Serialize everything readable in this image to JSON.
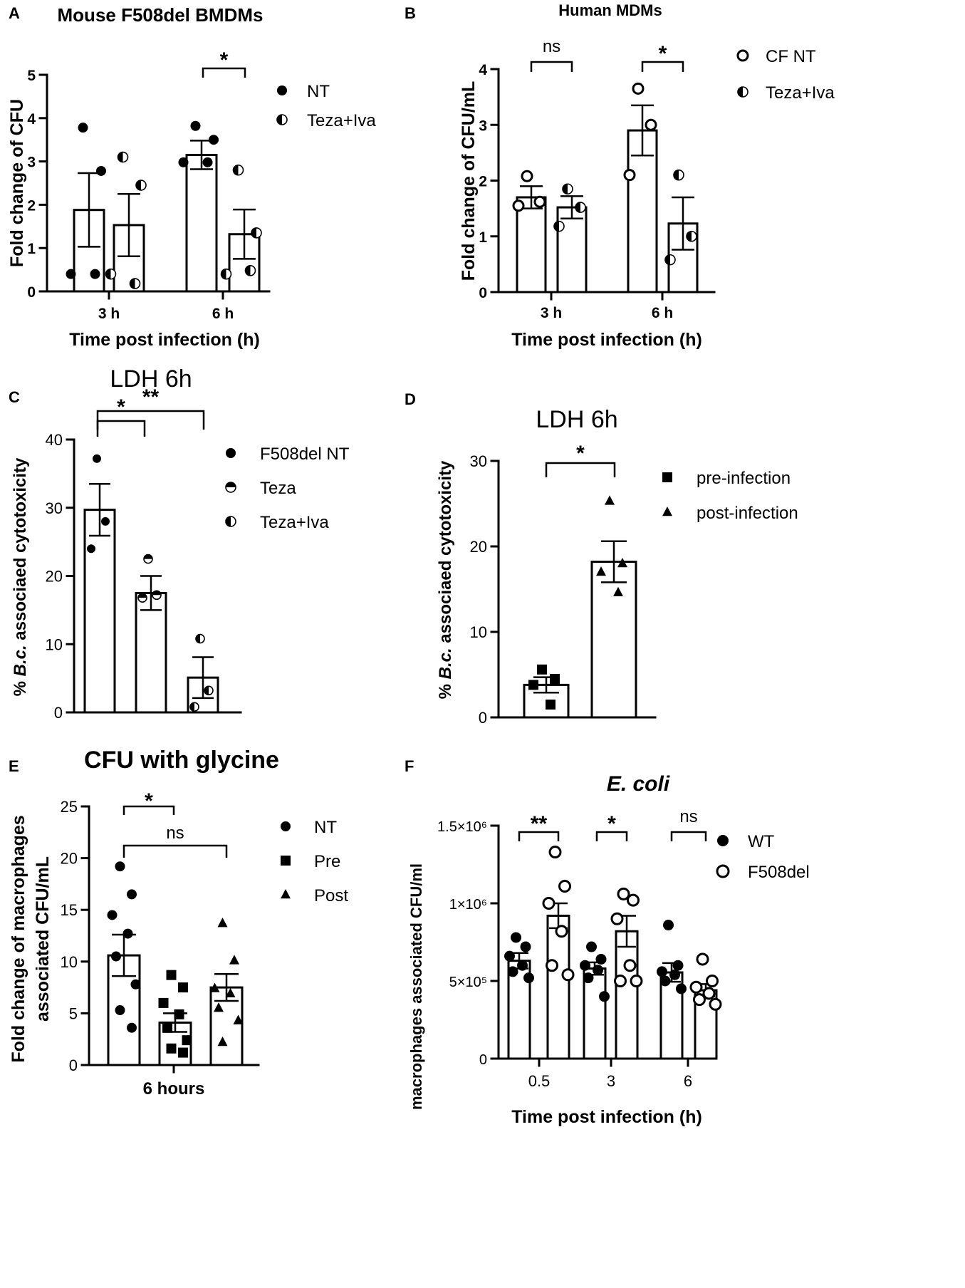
{
  "figure_title": "",
  "chart_data": [
    {
      "panel": "A",
      "type": "bar",
      "title": "Mouse F508del BMDMs",
      "xlabel": "Time post infection (h)",
      "ylabel": "Fold change of CFU",
      "ylim": [
        0,
        5
      ],
      "yticks": [
        "0",
        "1",
        "2",
        "3",
        "4",
        "5"
      ],
      "categories": [
        "3 h",
        "6 h"
      ],
      "series": [
        {
          "name": "NT",
          "marker": "filled-circle",
          "values": [
            1.88,
            3.15
          ],
          "sem": [
            0.85,
            0.33
          ],
          "points": [
            [
              3.78,
              2.78,
              0.4,
              0.4
            ],
            [
              3.82,
              3.5,
              2.98,
              2.98
            ]
          ]
        },
        {
          "name": "Teza+Iva",
          "marker": "half-circle",
          "values": [
            1.53,
            1.32
          ],
          "sem": [
            0.72,
            0.57
          ],
          "points": [
            [
              3.1,
              2.45,
              0.4,
              0.18
            ],
            [
              2.8,
              1.35,
              0.4,
              0.48
            ]
          ]
        }
      ],
      "comparisons": [
        {
          "category": "6 h",
          "label": "*"
        }
      ]
    },
    {
      "panel": "B",
      "type": "bar",
      "title": "Human MDMs",
      "xlabel": "Time post infection (h)",
      "ylabel": "Fold change of CFU/mL",
      "ylim": [
        0,
        4
      ],
      "yticks": [
        "0",
        "1",
        "2",
        "3",
        "4"
      ],
      "categories": [
        "3 h",
        "6 h"
      ],
      "series": [
        {
          "name": "CF NT",
          "marker": "open-circle",
          "values": [
            1.7,
            2.9
          ],
          "sem": [
            0.2,
            0.45
          ],
          "points": [
            [
              2.08,
              1.62,
              1.55
            ],
            [
              3.65,
              3.0,
              2.1
            ]
          ]
        },
        {
          "name": "Teza+Iva",
          "marker": "half-circle",
          "values": [
            1.52,
            1.23
          ],
          "sem": [
            0.2,
            0.47
          ],
          "points": [
            [
              1.85,
              1.52,
              1.18
            ],
            [
              2.1,
              1.0,
              0.58
            ]
          ]
        }
      ],
      "comparisons": [
        {
          "category": "3 h",
          "label": "ns"
        },
        {
          "category": "6 h",
          "label": "*"
        }
      ]
    },
    {
      "panel": "C",
      "type": "bar",
      "title": "LDH 6h",
      "xlabel": "",
      "ylabel_parts": [
        "% ",
        "B.c.",
        " associaed cytotoxicity"
      ],
      "ylim": [
        0,
        40
      ],
      "yticks": [
        "0",
        "10",
        "20",
        "30",
        "40"
      ],
      "categories": [
        "F508del NT",
        "Teza",
        "Teza+Iva"
      ],
      "values": [
        29.7,
        17.5,
        5.1
      ],
      "sem": [
        3.8,
        2.5,
        3.0
      ],
      "points": [
        [
          37.2,
          28.0,
          24.0
        ],
        [
          22.5,
          17.2,
          16.8
        ],
        [
          10.8,
          3.2,
          0.8
        ]
      ],
      "markers": [
        "filled-circle",
        "half-circle-h",
        "half-circle"
      ],
      "legend": [
        "F508del NT",
        "Teza",
        "Teza+Iva"
      ],
      "comparisons": [
        {
          "label": "*",
          "groups": [
            0,
            1
          ]
        },
        {
          "label": "**",
          "groups": [
            0,
            2
          ]
        }
      ]
    },
    {
      "panel": "D",
      "type": "bar",
      "title": "LDH 6h",
      "xlabel": "",
      "ylabel_parts": [
        "% ",
        "B.c.",
        " associaed cytotoxicity"
      ],
      "ylim": [
        0,
        30
      ],
      "yticks": [
        "0",
        "10",
        "20",
        "30"
      ],
      "categories": [
        "pre-infection",
        "post-infection"
      ],
      "values": [
        3.8,
        18.2
      ],
      "sem": [
        0.9,
        2.4
      ],
      "points": [
        [
          5.6,
          4.5,
          3.8,
          1.5
        ],
        [
          25.3,
          18.0,
          17.0,
          14.6
        ]
      ],
      "markers": [
        "square",
        "triangle"
      ],
      "legend": [
        "pre-infection",
        "post-infection"
      ],
      "comparisons": [
        {
          "label": "*",
          "groups": [
            0,
            1
          ]
        }
      ]
    },
    {
      "panel": "E",
      "type": "bar",
      "title": "CFU with glycine",
      "xlabel": "6 hours",
      "ylabel_lines": [
        "Fold change of macrophages",
        "associated CFU/mL"
      ],
      "ylim": [
        0,
        25
      ],
      "yticks": [
        "0",
        "5",
        "10",
        "15",
        "20",
        "25"
      ],
      "categories": [
        "NT",
        "Pre",
        "Post"
      ],
      "values": [
        10.6,
        4.1,
        7.5
      ],
      "sem": [
        2.0,
        0.9,
        1.3
      ],
      "points": [
        [
          19.2,
          16.5,
          14.5,
          12.7,
          10.5,
          7.8,
          5.3,
          3.6
        ],
        [
          8.7,
          7.5,
          6.0,
          4.9,
          3.6,
          2.4,
          1.6,
          1.2
        ],
        [
          13.7,
          10.1,
          7.4,
          6.9,
          5.5,
          4.3,
          2.2
        ]
      ],
      "markers": [
        "filled-circle",
        "square",
        "triangle"
      ],
      "legend": [
        "NT",
        "Pre",
        "Post"
      ],
      "comparisons": [
        {
          "label": "*",
          "groups": [
            0,
            1
          ]
        },
        {
          "label": "ns",
          "groups": [
            0,
            2
          ]
        }
      ]
    },
    {
      "panel": "F",
      "type": "bar",
      "title": "E. coli",
      "xlabel": "Time post infection (h)",
      "ylabel": "macrophages associated CFU/ml",
      "ylim": [
        0,
        1500000
      ],
      "yticks": [
        "0",
        "5×10⁵",
        "1×10⁶",
        "1.5×10⁶"
      ],
      "categories": [
        "0.5",
        "3",
        "6"
      ],
      "series": [
        {
          "name": "WT",
          "marker": "filled-circle",
          "values": [
            630000,
            580000,
            555000
          ],
          "sem": [
            50000,
            40000,
            60000
          ],
          "points": [
            [
              780000,
              720000,
              660000,
              600000,
              560000,
              520000
            ],
            [
              720000,
              640000,
              600000,
              570000,
              520000,
              400000
            ],
            [
              860000,
              600000,
              560000,
              540000,
              500000,
              450000
            ]
          ]
        },
        {
          "name": "F508del",
          "marker": "open-circle",
          "values": [
            920000,
            820000,
            440000
          ],
          "sem": [
            80000,
            100000,
            40000
          ],
          "points": [
            [
              1330000,
              1110000,
              1000000,
              820000,
              600000,
              540000
            ],
            [
              1060000,
              1020000,
              900000,
              600000,
              500000,
              500000
            ],
            [
              640000,
              500000,
              460000,
              420000,
              380000,
              350000
            ]
          ]
        }
      ],
      "comparisons": [
        {
          "category": "0.5",
          "label": "**"
        },
        {
          "category": "3",
          "label": "*"
        },
        {
          "category": "6",
          "label": "ns"
        }
      ]
    }
  ]
}
